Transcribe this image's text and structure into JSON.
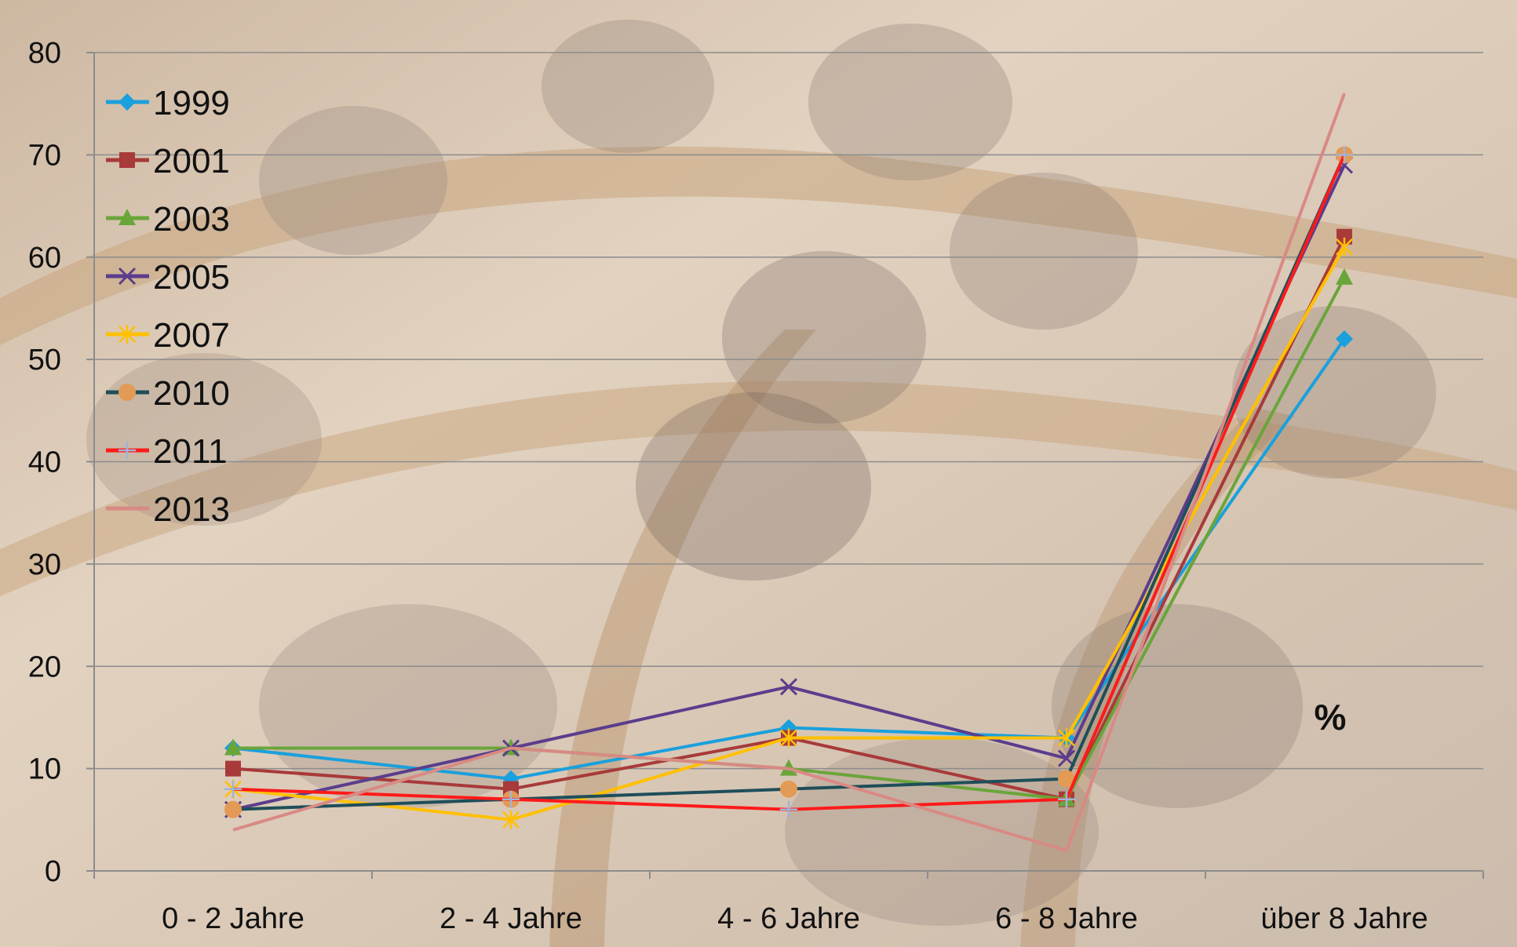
{
  "chart_data": {
    "type": "line",
    "categories": [
      "0 - 2 Jahre",
      "2 - 4 Jahre",
      "4 - 6 Jahre",
      "6 - 8 Jahre",
      "über 8 Jahre"
    ],
    "ylim": [
      0,
      80
    ],
    "yticks": [
      "0",
      "10",
      "20",
      "30",
      "40",
      "50",
      "60",
      "70",
      "80"
    ],
    "grid": true,
    "legend_position": "top-left",
    "annotation": "%",
    "series": [
      {
        "name": "1999",
        "color": "#1aa0dc",
        "marker": "diamond",
        "values": [
          12,
          9,
          14,
          13,
          52
        ]
      },
      {
        "name": "2001",
        "color": "#a83a3a",
        "marker": "square",
        "values": [
          10,
          8,
          13,
          7,
          62
        ]
      },
      {
        "name": "2003",
        "color": "#6aa53a",
        "marker": "triangle",
        "values": [
          12,
          12,
          10,
          7,
          58
        ]
      },
      {
        "name": "2005",
        "color": "#5b3d8c",
        "marker": "x",
        "values": [
          6,
          12,
          18,
          11,
          69
        ]
      },
      {
        "name": "2007",
        "color": "#ffc000",
        "marker": "star",
        "values": [
          8,
          5,
          13,
          13,
          61
        ]
      },
      {
        "name": "2010",
        "color": "#1f4e5a",
        "marker": "circle",
        "values": [
          6,
          7,
          8,
          9,
          70
        ]
      },
      {
        "name": "2011",
        "color": "#ff1a1a",
        "marker": "plus",
        "values": [
          8,
          7,
          6,
          7,
          70
        ]
      },
      {
        "name": "2013",
        "color": "#d88a84",
        "marker": "none",
        "values": [
          4,
          12,
          10,
          2,
          76
        ]
      }
    ]
  }
}
